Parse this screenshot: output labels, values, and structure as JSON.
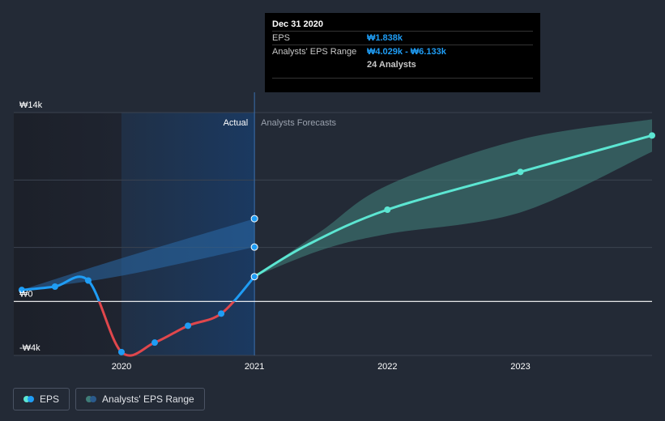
{
  "colors": {
    "background": "#232a36",
    "actual_shade": "#1a3a63",
    "past_line_up": "#1f9df5",
    "past_line_down": "#e0474c",
    "forecast_line": "#5ce6d2",
    "forecast_band": "#3f7d78",
    "zero_line": "#ffffff",
    "grid": "#3b4350",
    "axis_text": "#ffffff"
  },
  "tooltip": {
    "date": "Dec 31 2020",
    "eps_label": "EPS",
    "eps_value": "₩1.838k",
    "range_label": "Analysts' EPS Range",
    "range_value": "₩4.029k - ₩6.133k",
    "analysts": "24 Analysts"
  },
  "legend": {
    "eps_label": "EPS",
    "range_label": "Analysts' EPS Range"
  },
  "chart_data": {
    "type": "line",
    "region_labels": {
      "actual": "Actual",
      "forecast": "Analysts Forecasts"
    },
    "y_tick_labels": [
      {
        "value": 14000,
        "label": "₩14k"
      },
      {
        "value": 0,
        "label": "₩0"
      },
      {
        "value": -4000,
        "label": "-₩4k"
      }
    ],
    "ylim": [
      -4000,
      14000
    ],
    "xlim": [
      2019.19,
      2023.99
    ],
    "x_ticks": [
      2020,
      2021,
      2022,
      2023
    ],
    "x_tick_labels": [
      "2020",
      "2021",
      "2022",
      "2023"
    ],
    "actual_start": 2020.0,
    "actual_end": 2021.0,
    "series": [
      {
        "name": "EPS",
        "role": "actual",
        "points": [
          {
            "x": 2019.25,
            "y": 850
          },
          {
            "x": 2019.5,
            "y": 1100
          },
          {
            "x": 2019.75,
            "y": 1550
          },
          {
            "x": 2020.0,
            "y": -3750
          },
          {
            "x": 2020.25,
            "y": -3050
          },
          {
            "x": 2020.5,
            "y": -1800
          },
          {
            "x": 2020.75,
            "y": -900
          },
          {
            "x": 2021.0,
            "y": 1838
          }
        ],
        "markers": [
          true,
          true,
          true,
          true,
          true,
          true,
          true,
          true
        ]
      },
      {
        "name": "Analysts' EPS Range",
        "role": "past_range",
        "points": [
          {
            "x": 2019.25,
            "lo": 850,
            "hi": 850
          },
          {
            "x": 2020.0,
            "lo": 1900,
            "hi": 3200
          },
          {
            "x": 2021.0,
            "lo": 4029,
            "hi": 6133
          }
        ],
        "markers_at_end": true
      },
      {
        "name": "EPS",
        "role": "forecast",
        "points": [
          {
            "x": 2021.0,
            "y": 1838
          },
          {
            "x": 2021.4,
            "y": 4200
          },
          {
            "x": 2022.0,
            "y": 6800
          },
          {
            "x": 2023.0,
            "y": 9600
          },
          {
            "x": 2023.99,
            "y": 12300
          }
        ],
        "markers": [
          false,
          false,
          true,
          true,
          true
        ]
      },
      {
        "name": "Analysts' EPS Range",
        "role": "forecast_range",
        "points": [
          {
            "x": 2021.0,
            "lo": 1838,
            "hi": 1838
          },
          {
            "x": 2021.5,
            "lo": 3800,
            "hi": 5200
          },
          {
            "x": 2022.0,
            "lo": 5000,
            "hi": 8600
          },
          {
            "x": 2023.0,
            "lo": 6600,
            "hi": 12000
          },
          {
            "x": 2023.99,
            "lo": 11100,
            "hi": 13500
          }
        ]
      }
    ]
  }
}
